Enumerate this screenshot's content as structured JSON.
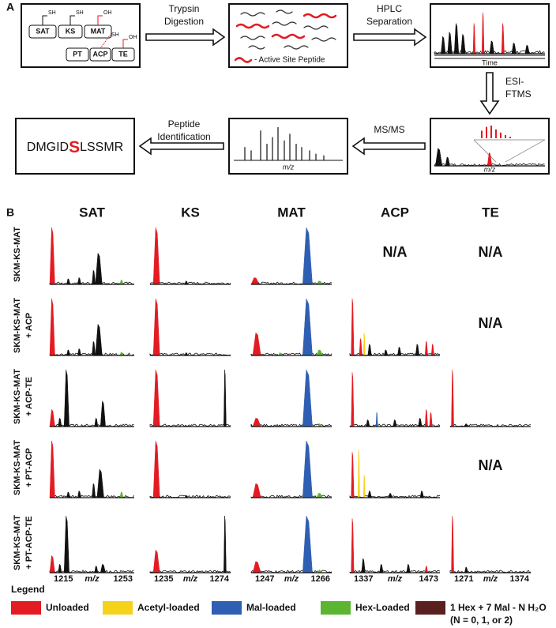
{
  "panel_a": {
    "label": "A",
    "domains": [
      "SAT",
      "KS",
      "MAT",
      "PT",
      "ACP",
      "TE"
    ],
    "thiol_labels": [
      "SH",
      "SH",
      "OH",
      "SH",
      "OH"
    ],
    "steps": [
      [
        "Trypsin",
        "Digestion"
      ],
      [
        "HPLC",
        "Separation"
      ],
      [
        "ESI-",
        "FTMS"
      ],
      [
        "MS/MS"
      ],
      [
        "Peptide",
        "Identification"
      ]
    ],
    "peptide_legend": "- Active Site Peptide",
    "time_axis": "Time",
    "mz_axis": "m/z",
    "sequence": {
      "before": "DMGID",
      "site": "S",
      "after": "LSSMR"
    }
  },
  "panel_b": {
    "label": "B",
    "columns": [
      "SAT",
      "KS",
      "MAT",
      "ACP",
      "TE"
    ],
    "rows": [
      [
        "SKM-KS-MAT"
      ],
      [
        "SKM-KS-MAT",
        "+ ACP"
      ],
      [
        "SKM-KS-MAT",
        "+ ACP-TE"
      ],
      [
        "SKM-KS-MAT",
        "+ PT-ACP"
      ],
      [
        "SKM-KS-MAT",
        "+ PT-ACP-TE"
      ]
    ],
    "na": "N/A",
    "mz_axis": "m/z",
    "x_labels": [
      [
        "1215",
        "1253"
      ],
      [
        "1235",
        "1274"
      ],
      [
        "1247",
        "1266"
      ],
      [
        "1337",
        "1473"
      ],
      [
        "1271",
        "1374"
      ]
    ],
    "legend_title": "Legend",
    "legend": [
      {
        "name": "Unloaded",
        "color": "#e31b23"
      },
      {
        "name": "Acetyl-loaded",
        "color": "#f5d21c"
      },
      {
        "name": "Mal-loaded",
        "color": "#2f5fb3"
      },
      {
        "name": "Hex-Loaded",
        "color": "#5cb531"
      },
      {
        "name": "1 Hex + 7 Mal - N H₂O",
        "note": "(N = 0, 1, or 2)",
        "color": "#5a1f1f"
      }
    ]
  }
}
